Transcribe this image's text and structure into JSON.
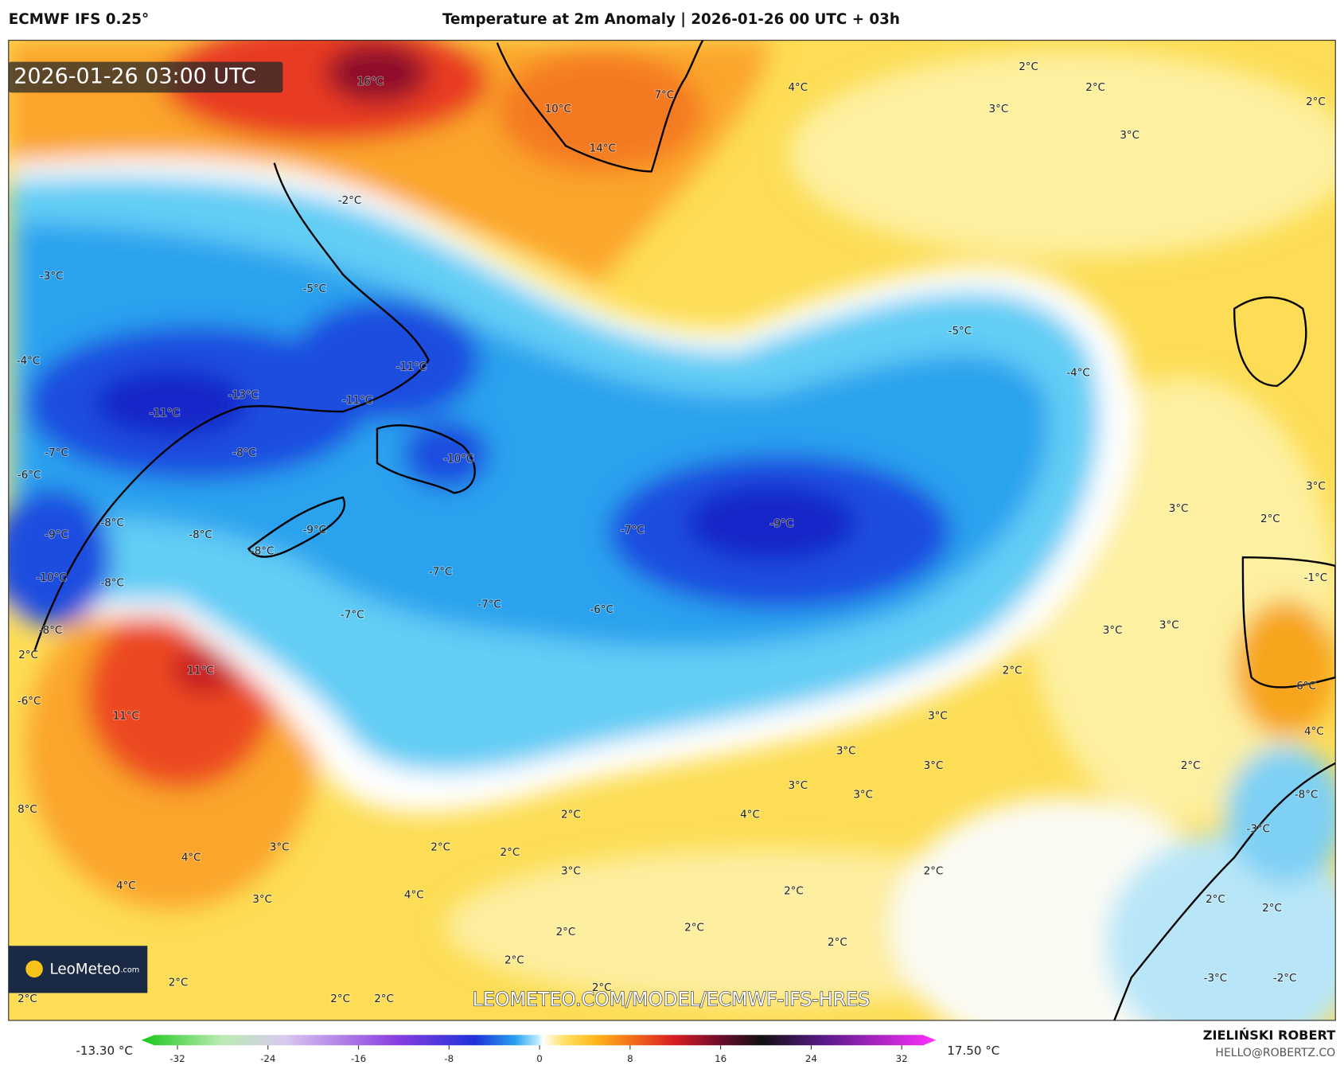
{
  "header": {
    "model": "ECMWF IFS 0.25°",
    "title": "Temperature at 2m Anomaly | 2026-01-26 00 UTC + 03h"
  },
  "map": {
    "timestamp": "2026-01-26 03:00 UTC",
    "watermark": "LEOMETEO.COM/MODEL/ECMWF-IFS-HRES",
    "logo": {
      "name": "LeoMeteo",
      "suffix": ".com"
    },
    "contour_labels": [
      "16°C",
      "10°C",
      "7°C",
      "14°C",
      "4°C",
      "2°C",
      "2°C",
      "3°C",
      "3°C",
      "2°C",
      "-2°C",
      "-3°C",
      "-5°C",
      "-5°C",
      "-4°C",
      "-11°C",
      "-4°C",
      "-13°C",
      "-11°C",
      "-11°C",
      "-7°C",
      "-8°C",
      "-10°C",
      "-6°C",
      "3°C",
      "3°C",
      "2°C",
      "-8°C",
      "-9°C",
      "-8°C",
      "-7°C",
      "-9°C",
      "-9°C",
      "-8°C",
      "-7°C",
      "-10°C",
      "-8°C",
      "-1°C",
      "-7°C",
      "-6°C",
      "-7°C",
      "3°C",
      "3°C",
      "-8°C",
      "2°C",
      "2°C",
      "11°C",
      "6°C",
      "-6°C",
      "11°C",
      "3°C",
      "4°C",
      "3°C",
      "3°C",
      "2°C",
      "3°C",
      "3°C",
      "-8°C",
      "8°C",
      "2°C",
      "4°C",
      "-3°C",
      "2°C",
      "3°C",
      "2°C",
      "4°C",
      "3°C",
      "2°C",
      "4°C",
      "2°C",
      "4°C",
      "3°C",
      "2°C",
      "2°C",
      "2°C",
      "2°C",
      "2°C",
      "2°C",
      "-3°C",
      "-2°C",
      "2°C",
      "2°C",
      "2°C",
      "2°C",
      "2°C"
    ]
  },
  "colorbar": {
    "min_label": "-13.30 °C",
    "max_label": "17.50 °C",
    "range": [
      -32,
      32
    ],
    "ticks": [
      -32,
      -24,
      -16,
      -8,
      0,
      8,
      16,
      24,
      32
    ]
  },
  "credits": {
    "author": "ZIELIŃSKI ROBERT",
    "contact": "HELLO@ROBERTZ.CO"
  }
}
